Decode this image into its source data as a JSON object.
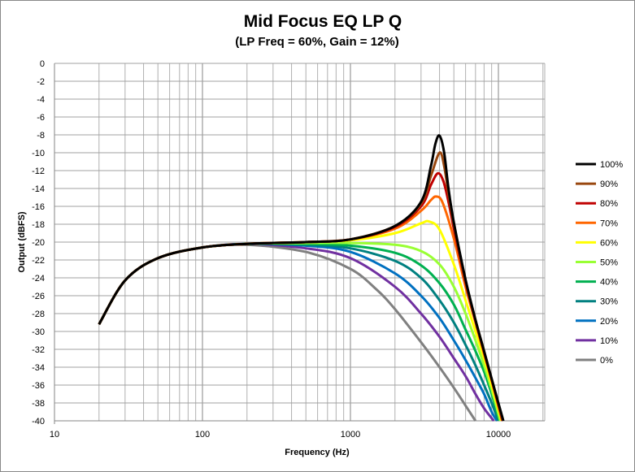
{
  "chart_data": {
    "type": "line",
    "title": "Mid Focus EQ LP Q",
    "subtitle": "(LP Freq = 60%, Gain = 12%)",
    "xlabel": "Frequency (Hz)",
    "ylabel": "Output (dBFS)",
    "xscale": "log",
    "xlim": [
      10,
      20000
    ],
    "ylim": [
      -40,
      0
    ],
    "xticks": [
      {
        "v": 10,
        "label": "10"
      },
      {
        "v": 100,
        "label": "100"
      },
      {
        "v": 1000,
        "label": "1000"
      },
      {
        "v": 10000,
        "label": "10000"
      }
    ],
    "yticks": [
      {
        "v": 0,
        "label": "0"
      },
      {
        "v": -2,
        "label": "-2"
      },
      {
        "v": -4,
        "label": "-4"
      },
      {
        "v": -6,
        "label": "-6"
      },
      {
        "v": -8,
        "label": "-8"
      },
      {
        "v": -10,
        "label": "-10"
      },
      {
        "v": -12,
        "label": "-12"
      },
      {
        "v": -14,
        "label": "-14"
      },
      {
        "v": -16,
        "label": "-16"
      },
      {
        "v": -18,
        "label": "-18"
      },
      {
        "v": -20,
        "label": "-20"
      },
      {
        "v": -22,
        "label": "-22"
      },
      {
        "v": -24,
        "label": "-24"
      },
      {
        "v": -26,
        "label": "-26"
      },
      {
        "v": -28,
        "label": "-28"
      },
      {
        "v": -30,
        "label": "-30"
      },
      {
        "v": -32,
        "label": "-32"
      },
      {
        "v": -34,
        "label": "-34"
      },
      {
        "v": -36,
        "label": "-36"
      },
      {
        "v": -38,
        "label": "-38"
      },
      {
        "v": -40,
        "label": "-40"
      }
    ],
    "grid": true,
    "legend_position": "right",
    "series": [
      {
        "name": "100%",
        "color": "#000000",
        "points": [
          [
            20,
            -29.2
          ],
          [
            30,
            -24.3
          ],
          [
            50,
            -21.8
          ],
          [
            100,
            -20.6
          ],
          [
            200,
            -20.2
          ],
          [
            500,
            -20
          ],
          [
            1000,
            -19.7
          ],
          [
            2000,
            -18.2
          ],
          [
            3000,
            -15.5
          ],
          [
            3500,
            -11.5
          ],
          [
            3750,
            -9
          ],
          [
            4000,
            -8.1
          ],
          [
            4300,
            -10
          ],
          [
            4600,
            -14
          ],
          [
            5000,
            -17.8
          ],
          [
            6000,
            -24.2
          ],
          [
            7000,
            -28.7
          ],
          [
            8000,
            -32.2
          ],
          [
            9000,
            -35.3
          ],
          [
            10800,
            -40
          ]
        ]
      },
      {
        "name": "90%",
        "color": "#99470f",
        "points": [
          [
            20,
            -29.2
          ],
          [
            30,
            -24.3
          ],
          [
            50,
            -21.8
          ],
          [
            100,
            -20.6
          ],
          [
            200,
            -20.2
          ],
          [
            500,
            -20
          ],
          [
            1000,
            -19.7
          ],
          [
            2000,
            -18.2
          ],
          [
            3000,
            -15.7
          ],
          [
            3500,
            -12.6
          ],
          [
            4000,
            -10
          ],
          [
            4300,
            -11.5
          ],
          [
            4600,
            -14.6
          ],
          [
            5000,
            -18
          ],
          [
            6000,
            -24.3
          ],
          [
            7000,
            -28.7
          ],
          [
            8000,
            -32.2
          ],
          [
            9000,
            -35.3
          ],
          [
            10750,
            -40
          ]
        ]
      },
      {
        "name": "80%",
        "color": "#c00000",
        "points": [
          [
            20,
            -29.2
          ],
          [
            30,
            -24.3
          ],
          [
            50,
            -21.8
          ],
          [
            100,
            -20.6
          ],
          [
            200,
            -20.2
          ],
          [
            500,
            -20
          ],
          [
            1000,
            -19.7
          ],
          [
            2000,
            -18.3
          ],
          [
            3000,
            -16
          ],
          [
            3500,
            -13.6
          ],
          [
            3900,
            -12.3
          ],
          [
            4250,
            -13.2
          ],
          [
            4600,
            -15.5
          ],
          [
            5000,
            -18.5
          ],
          [
            6000,
            -24.5
          ],
          [
            7000,
            -28.8
          ],
          [
            8000,
            -32.3
          ],
          [
            9000,
            -35.4
          ],
          [
            10700,
            -40
          ]
        ]
      },
      {
        "name": "70%",
        "color": "#ff6600",
        "points": [
          [
            20,
            -29.2
          ],
          [
            30,
            -24.3
          ],
          [
            50,
            -21.8
          ],
          [
            100,
            -20.6
          ],
          [
            200,
            -20.2
          ],
          [
            500,
            -20
          ],
          [
            1000,
            -19.7
          ],
          [
            2000,
            -18.5
          ],
          [
            3000,
            -16.5
          ],
          [
            3500,
            -15.3
          ],
          [
            3800,
            -14.9
          ],
          [
            4200,
            -15.6
          ],
          [
            5000,
            -19.6
          ],
          [
            6000,
            -25
          ],
          [
            7000,
            -29
          ],
          [
            8000,
            -32.5
          ],
          [
            9000,
            -35.5
          ],
          [
            10600,
            -40
          ]
        ]
      },
      {
        "name": "60%",
        "color": "#ffff00",
        "points": [
          [
            20,
            -29.2
          ],
          [
            30,
            -24.3
          ],
          [
            50,
            -21.8
          ],
          [
            100,
            -20.6
          ],
          [
            200,
            -20.2
          ],
          [
            500,
            -20
          ],
          [
            1000,
            -19.8
          ],
          [
            2000,
            -19
          ],
          [
            3000,
            -17.9
          ],
          [
            3400,
            -17.7
          ],
          [
            4000,
            -18.6
          ],
          [
            5000,
            -22.5
          ],
          [
            6000,
            -26.5
          ],
          [
            7000,
            -30
          ],
          [
            8000,
            -33
          ],
          [
            9000,
            -36
          ],
          [
            10500,
            -40
          ]
        ]
      },
      {
        "name": "50%",
        "color": "#99ff33",
        "points": [
          [
            20,
            -29.2
          ],
          [
            30,
            -24.3
          ],
          [
            50,
            -21.8
          ],
          [
            100,
            -20.6
          ],
          [
            200,
            -20.2
          ],
          [
            500,
            -20.1
          ],
          [
            1000,
            -20.1
          ],
          [
            2000,
            -20.3
          ],
          [
            3000,
            -21
          ],
          [
            4000,
            -22.5
          ],
          [
            5000,
            -25
          ],
          [
            6000,
            -28
          ],
          [
            7000,
            -31
          ],
          [
            8000,
            -33.8
          ],
          [
            9000,
            -36.5
          ],
          [
            10300,
            -40
          ]
        ]
      },
      {
        "name": "40%",
        "color": "#00b050",
        "points": [
          [
            20,
            -29.2
          ],
          [
            30,
            -24.3
          ],
          [
            50,
            -21.8
          ],
          [
            100,
            -20.6
          ],
          [
            200,
            -20.2
          ],
          [
            500,
            -20.2
          ],
          [
            1000,
            -20.4
          ],
          [
            2000,
            -21.2
          ],
          [
            3000,
            -22.6
          ],
          [
            4000,
            -24.6
          ],
          [
            5000,
            -27
          ],
          [
            6000,
            -29.8
          ],
          [
            7000,
            -32.2
          ],
          [
            8000,
            -34.5
          ],
          [
            9000,
            -37
          ],
          [
            10200,
            -40
          ]
        ]
      },
      {
        "name": "30%",
        "color": "#008080",
        "points": [
          [
            20,
            -29.2
          ],
          [
            30,
            -24.3
          ],
          [
            50,
            -21.8
          ],
          [
            100,
            -20.6
          ],
          [
            200,
            -20.2
          ],
          [
            500,
            -20.3
          ],
          [
            1000,
            -20.7
          ],
          [
            2000,
            -22.1
          ],
          [
            3000,
            -24
          ],
          [
            4000,
            -26.5
          ],
          [
            5000,
            -29
          ],
          [
            6000,
            -31.5
          ],
          [
            7000,
            -33.8
          ],
          [
            8000,
            -36
          ],
          [
            9000,
            -38
          ],
          [
            10000,
            -40
          ]
        ]
      },
      {
        "name": "20%",
        "color": "#0070c0",
        "points": [
          [
            20,
            -29.2
          ],
          [
            30,
            -24.3
          ],
          [
            50,
            -21.8
          ],
          [
            100,
            -20.6
          ],
          [
            200,
            -20.2
          ],
          [
            500,
            -20.4
          ],
          [
            1000,
            -21.1
          ],
          [
            2000,
            -23.5
          ],
          [
            3000,
            -26
          ],
          [
            4000,
            -28.5
          ],
          [
            5000,
            -31
          ],
          [
            6000,
            -33.2
          ],
          [
            7000,
            -35.2
          ],
          [
            8000,
            -37
          ],
          [
            9000,
            -39
          ],
          [
            9800,
            -40
          ]
        ]
      },
      {
        "name": "10%",
        "color": "#7030a0",
        "points": [
          [
            20,
            -29.2
          ],
          [
            30,
            -24.3
          ],
          [
            50,
            -21.8
          ],
          [
            100,
            -20.6
          ],
          [
            200,
            -20.2
          ],
          [
            500,
            -20.7
          ],
          [
            1000,
            -21.8
          ],
          [
            2000,
            -25
          ],
          [
            3000,
            -28
          ],
          [
            4000,
            -30.6
          ],
          [
            5000,
            -33
          ],
          [
            6000,
            -35
          ],
          [
            7000,
            -37
          ],
          [
            8000,
            -38.6
          ],
          [
            9300,
            -40
          ]
        ]
      },
      {
        "name": "0%",
        "color": "#808080",
        "points": [
          [
            20,
            -29.2
          ],
          [
            30,
            -24.3
          ],
          [
            50,
            -21.8
          ],
          [
            100,
            -20.6
          ],
          [
            200,
            -20.3
          ],
          [
            500,
            -21.1
          ],
          [
            1000,
            -23
          ],
          [
            1500,
            -25.3
          ],
          [
            2000,
            -27.5
          ],
          [
            3000,
            -31.2
          ],
          [
            4000,
            -34
          ],
          [
            5000,
            -36.3
          ],
          [
            6000,
            -38.3
          ],
          [
            7000,
            -40
          ]
        ]
      }
    ]
  }
}
